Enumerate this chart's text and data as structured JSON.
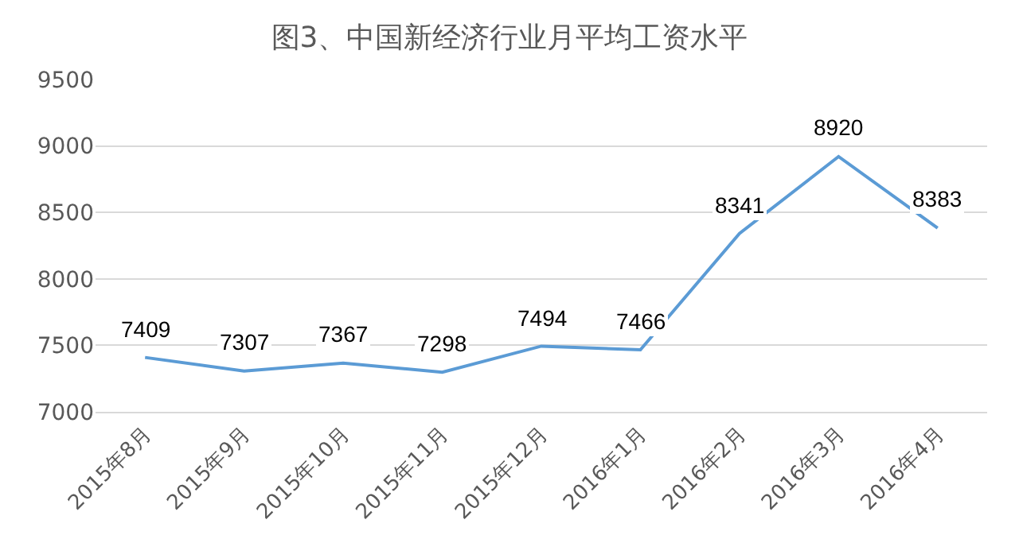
{
  "chart_data": {
    "type": "line",
    "title": "图3、中国新经济行业月平均工资水平",
    "categories": [
      "2015年8月",
      "2015年9月",
      "2015年10月",
      "2015年11月",
      "2015年12月",
      "2016年1月",
      "2016年2月",
      "2016年3月",
      "2016年4月"
    ],
    "series": [
      {
        "color": "#5b9bd5",
        "values": [
          7409,
          7307,
          7367,
          7298,
          7494,
          7466,
          8341,
          8920,
          8383
        ]
      }
    ],
    "ylim": [
      7000,
      9500
    ],
    "yticks": [
      7000,
      7500,
      8000,
      8500,
      9000,
      9500
    ],
    "grid": "y",
    "data_labels": true,
    "marker": "none",
    "line_style": "solid"
  }
}
